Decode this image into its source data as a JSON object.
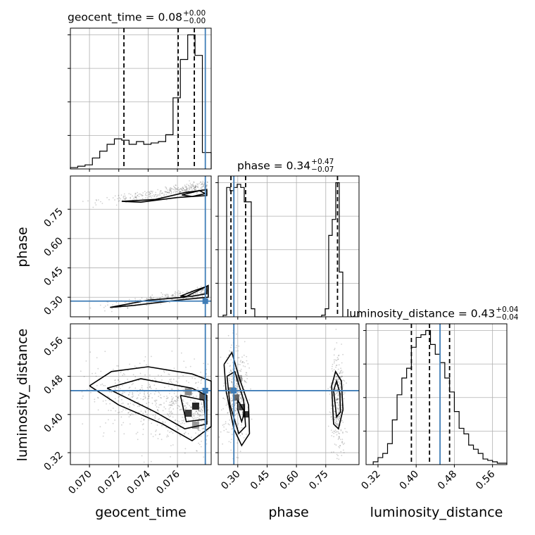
{
  "chart_data": {
    "type": "corner",
    "parameters": [
      "geocent_time",
      "phase",
      "luminosity_distance"
    ],
    "truth": {
      "geocent_time": 0.0779,
      "phase": 0.28,
      "luminosity_distance": 0.45
    },
    "colors": {
      "truth": "#3f7db7",
      "hist": "#000000",
      "grid": "#b0b0b0",
      "quantile": "#000000"
    },
    "panels": {
      "geocent_time": {
        "title": {
          "name": "geocent_time",
          "value": "0.08",
          "plus": "+0.00",
          "minus": "−0.00"
        },
        "range": [
          0.0687,
          0.0783
        ],
        "ticks": [
          0.07,
          0.072,
          0.074,
          0.076
        ],
        "tick_labels": [
          "0.070",
          "0.072",
          "0.074",
          "0.076"
        ],
        "quantiles": [
          0.07235,
          0.07605,
          0.07715
        ],
        "bin_edges": [
          0.0687,
          0.0692,
          0.0697,
          0.0702,
          0.0707,
          0.0712,
          0.0717,
          0.0722,
          0.0727,
          0.0732,
          0.0737,
          0.0742,
          0.0747,
          0.0752,
          0.0757,
          0.0762,
          0.0767,
          0.0772,
          0.0777,
          0.0783
        ],
        "counts": [
          1,
          2,
          3,
          8,
          13,
          18,
          22,
          21,
          18,
          20,
          18,
          19,
          20,
          25,
          52,
          80,
          98,
          83,
          12
        ]
      },
      "phase": {
        "title": {
          "name": "phase",
          "value": "0.34",
          "plus": "+0.47",
          "minus": "−0.07"
        },
        "range": [
          0.2,
          0.92
        ],
        "ticks": [
          0.3,
          0.45,
          0.6,
          0.75
        ],
        "tick_labels": [
          "0.30",
          "0.45",
          "0.60",
          "0.75"
        ],
        "quantiles": [
          0.265,
          0.34,
          0.81
        ],
        "bin_edges": [
          0.225,
          0.243,
          0.261,
          0.279,
          0.297,
          0.315,
          0.333,
          0.351,
          0.369,
          0.387,
          0.405,
          0.423,
          0.441,
          0.459,
          0.477,
          0.495,
          0.513,
          0.531,
          0.549,
          0.567,
          0.585,
          0.603,
          0.621,
          0.639,
          0.657,
          0.675,
          0.693,
          0.711,
          0.729,
          0.747,
          0.765,
          0.783,
          0.801,
          0.819,
          0.837
        ],
        "counts": [
          1,
          81,
          79,
          81,
          83,
          81,
          72,
          72,
          5,
          0,
          0,
          0,
          0,
          0,
          0,
          0,
          0,
          0,
          0,
          0,
          0,
          0,
          0,
          0,
          0,
          0,
          0,
          0,
          1,
          5,
          51,
          61,
          84,
          28
        ]
      },
      "luminosity_distance": {
        "title": {
          "name": "luminosity_distance",
          "value": "0.43",
          "plus": "+0.04",
          "minus": "−0.04"
        },
        "range": [
          0.295,
          0.59
        ],
        "ticks": [
          0.32,
          0.4,
          0.48,
          0.56
        ],
        "tick_labels": [
          "0.32",
          "0.40",
          "0.48",
          "0.56"
        ],
        "quantiles": [
          0.39,
          0.428,
          0.47
        ],
        "bin_edges": [
          0.31,
          0.32,
          0.33,
          0.34,
          0.35,
          0.36,
          0.37,
          0.38,
          0.39,
          0.4,
          0.41,
          0.42,
          0.43,
          0.44,
          0.45,
          0.46,
          0.47,
          0.48,
          0.49,
          0.5,
          0.51,
          0.52,
          0.53,
          0.54,
          0.55,
          0.56,
          0.57,
          0.58,
          0.59
        ],
        "counts": [
          2,
          5,
          8,
          15,
          32,
          50,
          62,
          69,
          84,
          91,
          93,
          96,
          86,
          79,
          73,
          62,
          52,
          38,
          26,
          22,
          14,
          11,
          8,
          4,
          3,
          2,
          1,
          1
        ]
      }
    },
    "axis_labels": {
      "x": [
        "geocent_time",
        "phase",
        "luminosity_distance"
      ],
      "y": [
        "phase",
        "luminosity_distance"
      ]
    },
    "grid": true
  }
}
